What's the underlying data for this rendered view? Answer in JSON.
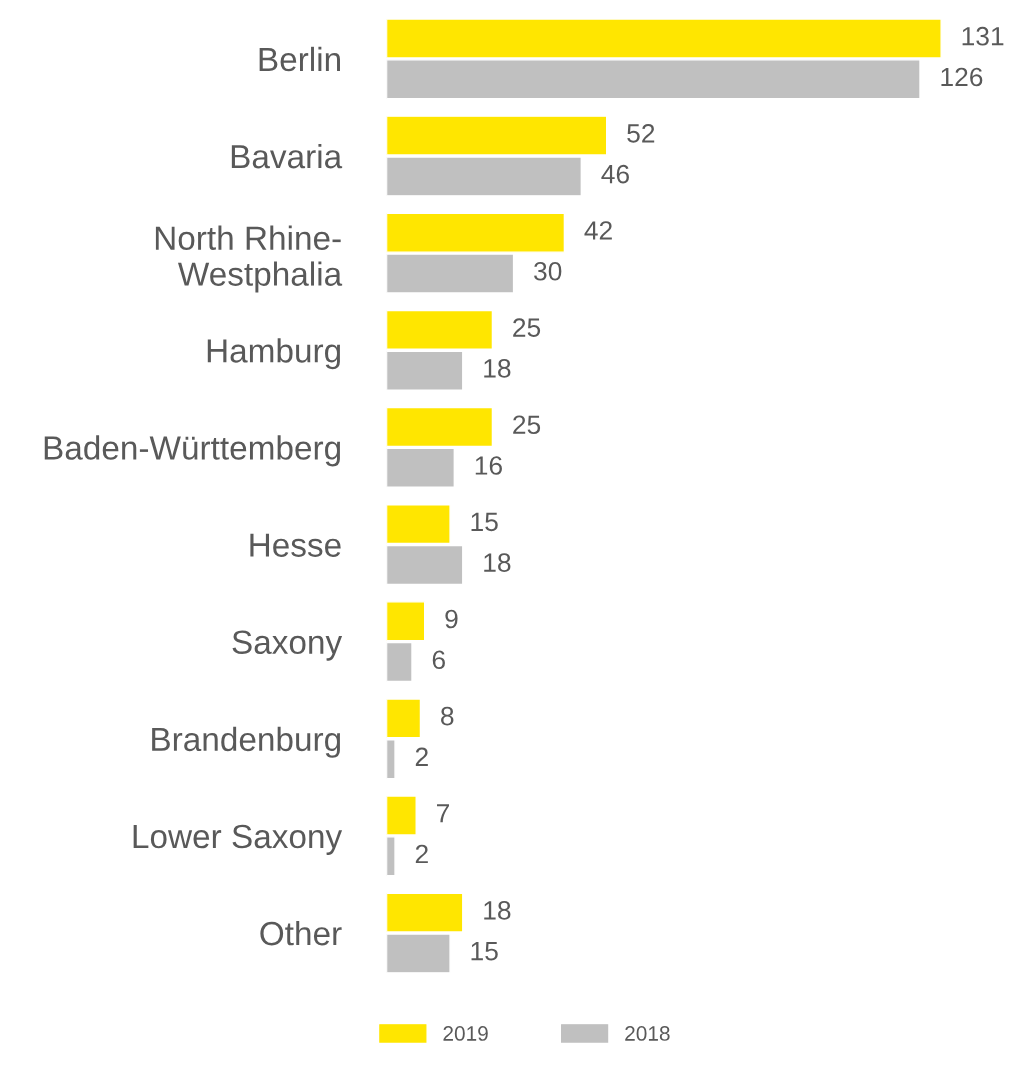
{
  "chart_data": {
    "type": "bar",
    "orientation": "horizontal",
    "categories": [
      "Berlin",
      "Bavaria",
      "North Rhine-\nWestphalia",
      "Hamburg",
      "Baden-Württemberg",
      "Hesse",
      "Saxony",
      "Brandenburg",
      "Lower Saxony",
      "Other"
    ],
    "series": [
      {
        "name": "2019",
        "color": "#ffe600",
        "values": [
          131,
          52,
          42,
          25,
          25,
          15,
          9,
          8,
          7,
          18
        ]
      },
      {
        "name": "2018",
        "color": "#c0c0c0",
        "values": [
          126,
          46,
          30,
          18,
          16,
          18,
          6,
          2,
          2,
          15
        ]
      }
    ],
    "data_labels": true,
    "legend": "bottom",
    "grid": false,
    "tick_labels": "y"
  }
}
